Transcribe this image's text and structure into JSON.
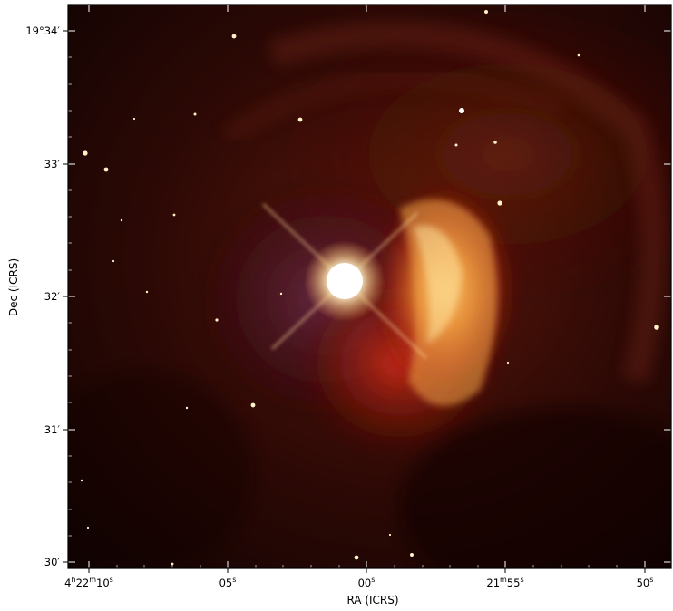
{
  "axes": {
    "xlabel": "RA (ICRS)",
    "ylabel": "Dec (ICRS)",
    "x_ticks": [
      {
        "label": "4h22m10s"
      },
      {
        "label": "05s"
      },
      {
        "label": "00s"
      },
      {
        "label": "21m55s"
      },
      {
        "label": "50s"
      }
    ],
    "y_ticks": [
      {
        "label": "19°34′"
      },
      {
        "label": "33′"
      },
      {
        "label": "32′"
      },
      {
        "label": "31′"
      },
      {
        "label": "30′"
      }
    ]
  },
  "colors": {
    "frame": "#000000",
    "tick": "#ffffff",
    "nebula_bright": "#ffd36a",
    "nebula_mid": "#c2361c",
    "nebula_dark": "#3a0d06",
    "space_dark": "#140402"
  }
}
